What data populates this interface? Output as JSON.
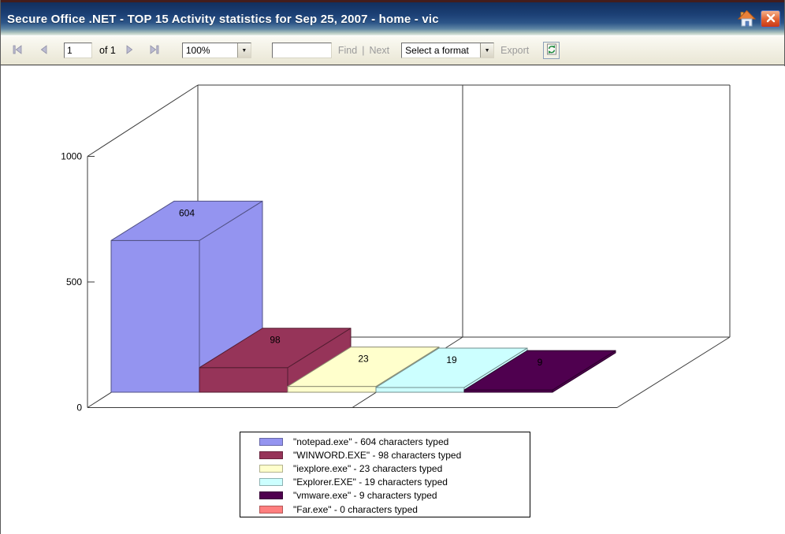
{
  "window": {
    "title": "Secure Office .NET - TOP 15 Activity statistics for Sep 25, 2007 - home - vic"
  },
  "toolbar": {
    "page_value": "1",
    "pages_label": "of 1",
    "zoom_value": "100%",
    "find_value": "",
    "find_label": "Find",
    "separator": "|",
    "next_label": "Next",
    "format_value": "Select a format",
    "export_label": "Export"
  },
  "chart_data": {
    "type": "bar",
    "projection": "3d",
    "title": "",
    "xlabel": "",
    "ylabel": "",
    "ylim": [
      0,
      1000
    ],
    "y_ticks": [
      0,
      500,
      1000
    ],
    "grid": "category-major",
    "legend_position": "bottom",
    "categories": [
      "notepad.exe",
      "WINWORD.EXE",
      "iexplore.exe",
      "Explorer.EXE",
      "vmware.exe",
      "Far.exe"
    ],
    "values": [
      604,
      98,
      23,
      19,
      9,
      0
    ],
    "colors": [
      "#9494F0",
      "#963459",
      "#FFFFCC",
      "#CCFFFF",
      "#4F004F",
      "#FF7F7F"
    ],
    "legend": [
      "\"notepad.exe\" - 604 characters typed",
      "\"WINWORD.EXE\" - 98 characters typed",
      "\"iexplore.exe\" - 23 characters typed",
      "\"Explorer.EXE\" - 19 characters typed",
      "\"vmware.exe\" - 9 characters typed",
      "\"Far.exe\" - 0 characters typed"
    ]
  }
}
